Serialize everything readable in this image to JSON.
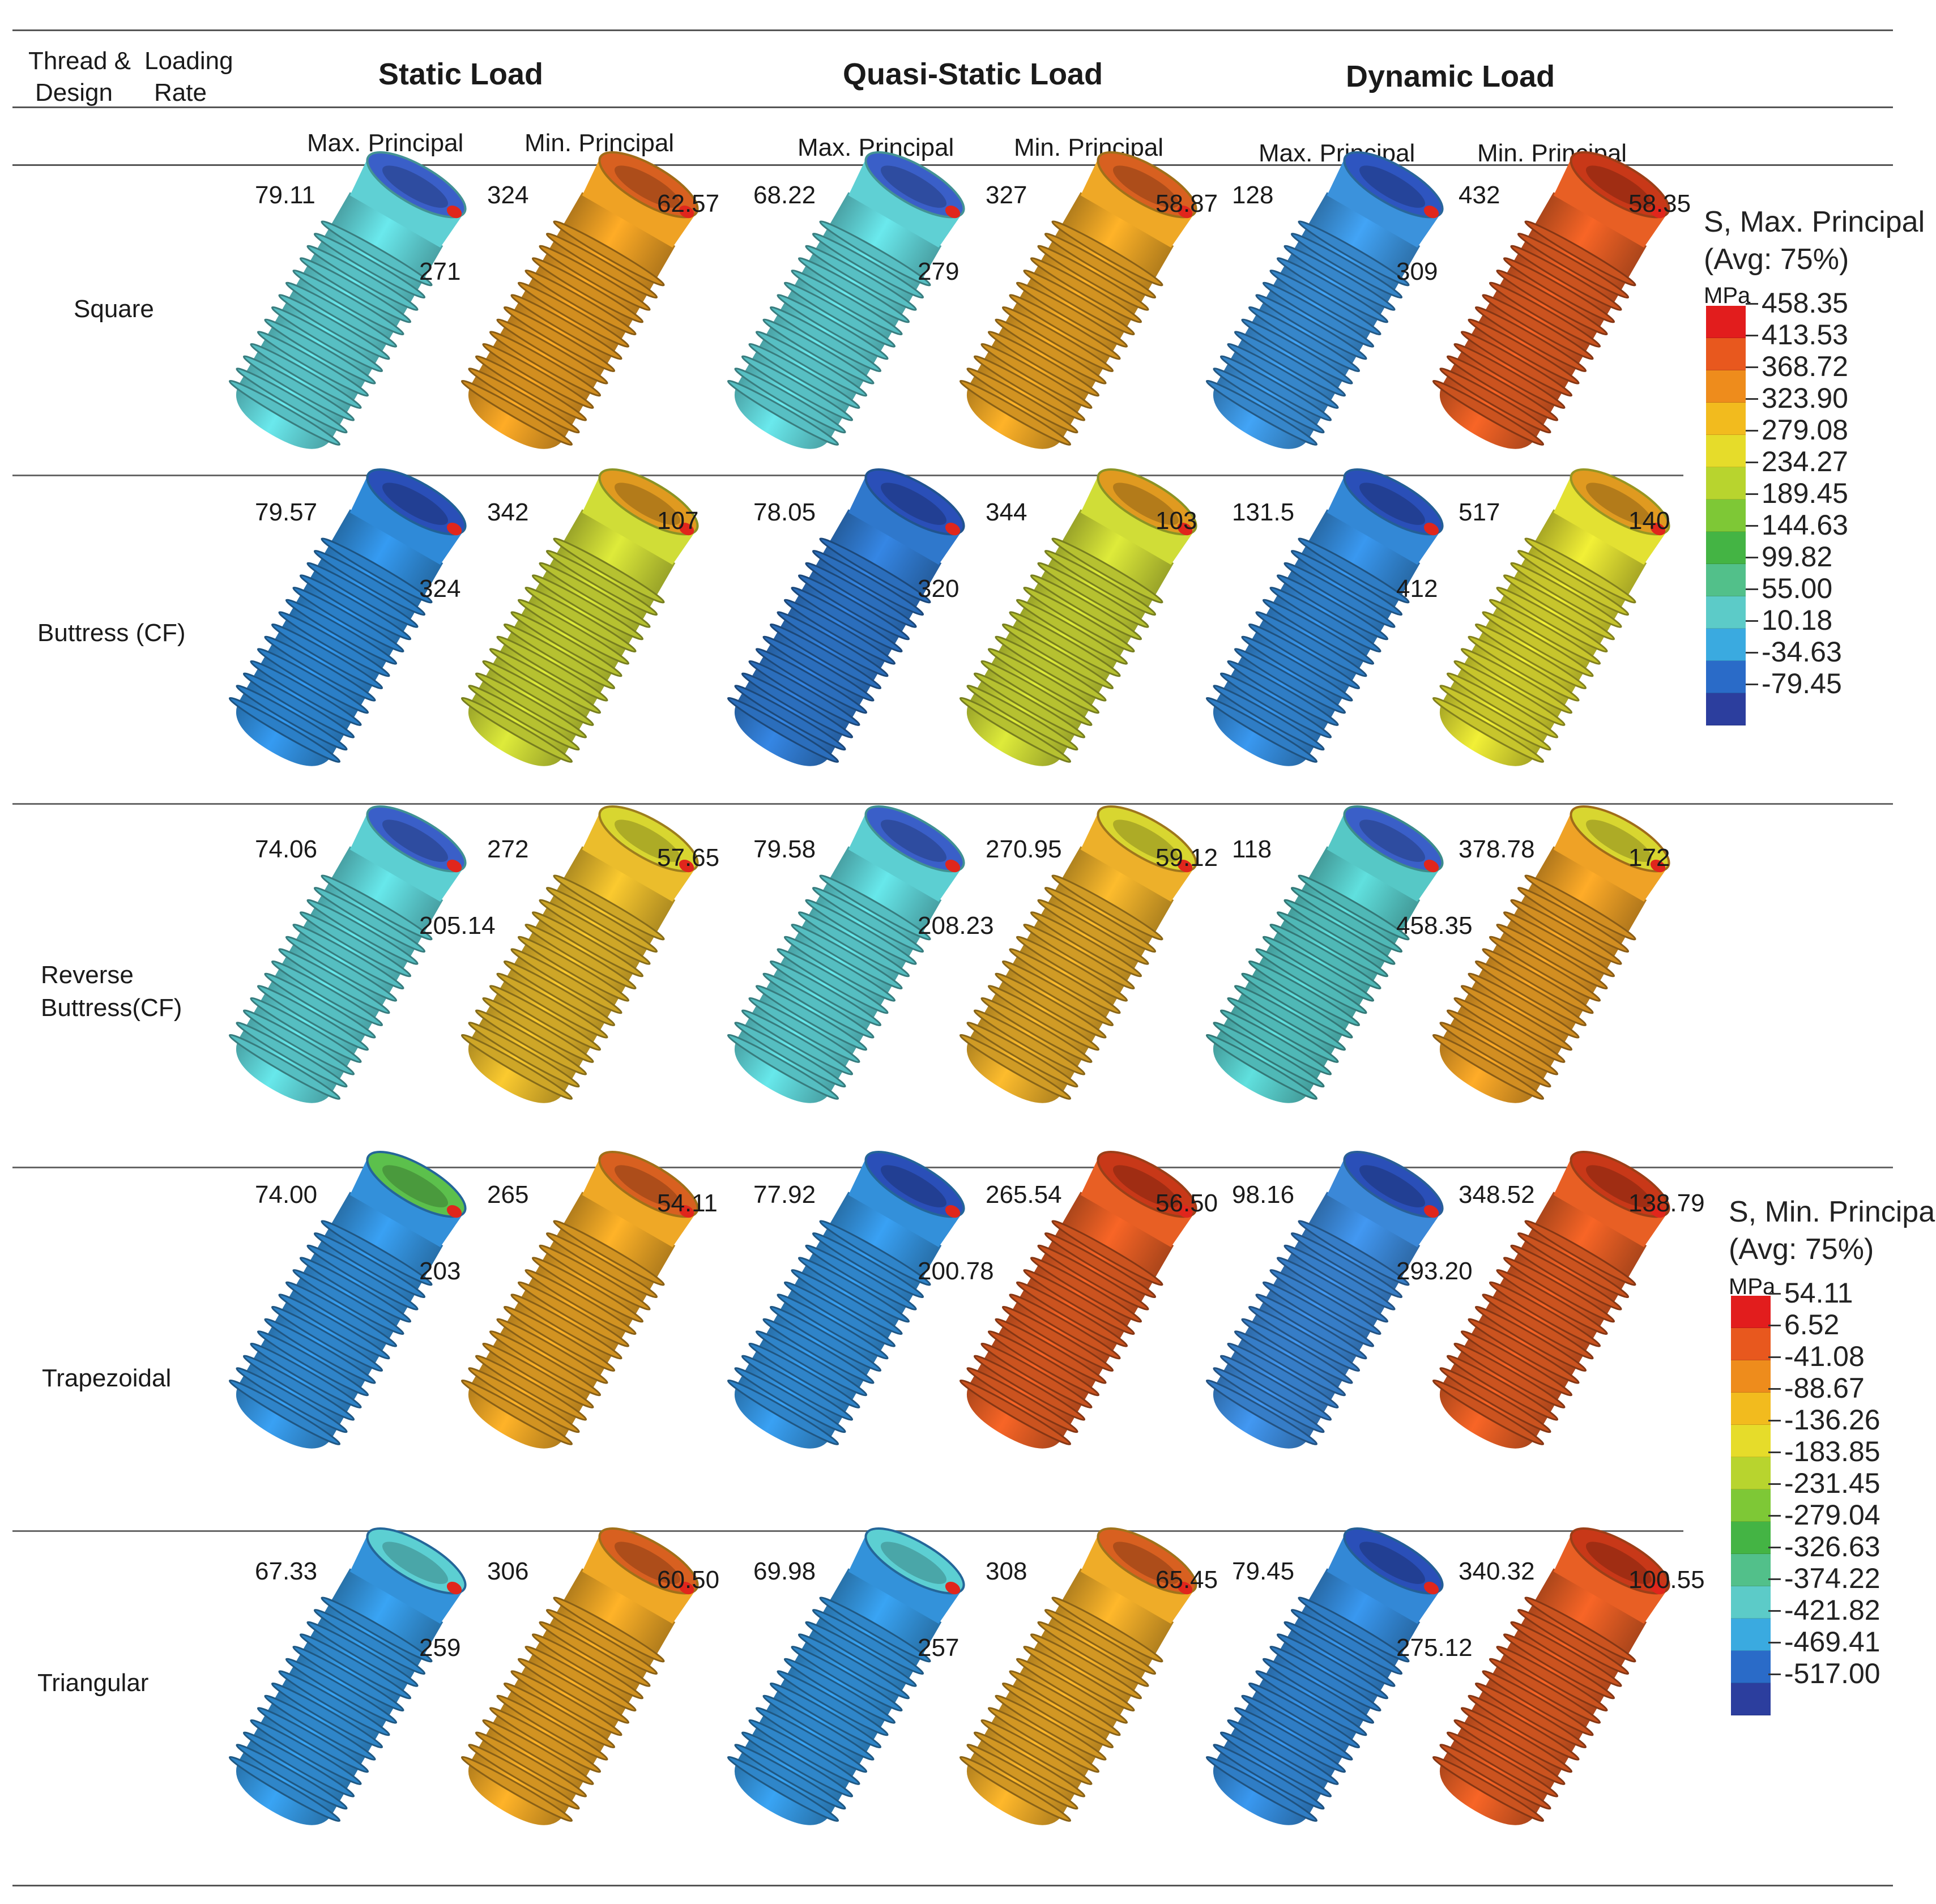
{
  "header": {
    "thread_design_label": "Thread & Design",
    "thread_label": "Thread &",
    "design_label": "Design",
    "loading_label": "Loading",
    "rate_label": "Rate",
    "columns": [
      {
        "title": "Static Load",
        "sub": [
          "Max. Principal",
          "Min. Principal"
        ]
      },
      {
        "title": "Quasi-Static Load",
        "sub": [
          "Max. Principal",
          "Min. Principal"
        ]
      },
      {
        "title": "Dynamic Load",
        "sub": [
          "Max. Principal",
          "Min. Principal"
        ]
      }
    ]
  },
  "rows": [
    {
      "name": "Square",
      "name_lines": [
        "Square"
      ],
      "cells": [
        {
          "a": "79.11",
          "b": "271",
          "style": "max",
          "color": "#5fd0d4",
          "top": "#3a5fc8"
        },
        {
          "a": "324",
          "b": "62.57",
          "style": "min",
          "color": "#e49a22",
          "top": "#d86020"
        },
        {
          "a": "68.22",
          "b": "279",
          "style": "max",
          "color": "#5fd0d4",
          "top": "#3a5fc8"
        },
        {
          "a": "327",
          "b": "58.87",
          "style": "min",
          "color": "#e4a024",
          "top": "#d86020"
        },
        {
          "a": "128",
          "b": "309",
          "style": "max",
          "color": "#3b92dc",
          "top": "#2e55c0"
        },
        {
          "a": "432",
          "b": "58.35",
          "style": "min",
          "color": "#dd5a22",
          "top": "#c83818"
        }
      ]
    },
    {
      "name": "Buttress (CF)",
      "name_lines": [
        "Buttress (CF)"
      ],
      "cells": [
        {
          "a": "79.57",
          "b": "324",
          "style": "max",
          "color": "#2f8ad8",
          "top": "#2a4fb8"
        },
        {
          "a": "342",
          "b": "107",
          "style": "min",
          "color": "#c6d234",
          "top": "#e09a20"
        },
        {
          "a": "78.05",
          "b": "320",
          "style": "max",
          "color": "#2f78cc",
          "top": "#2a4fb8"
        },
        {
          "a": "344",
          "b": "103",
          "style": "min",
          "color": "#c6d234",
          "top": "#e09a20"
        },
        {
          "a": "131.5",
          "b": "412",
          "style": "max",
          "color": "#3388d6",
          "top": "#2a4fb8"
        },
        {
          "a": "517",
          "b": "140",
          "style": "min",
          "color": "#d8d630",
          "top": "#e09a20"
        }
      ]
    },
    {
      "name": "Reverse Buttress(CF)",
      "name_lines": [
        "Reverse",
        "Buttress(CF)"
      ],
      "cells": [
        {
          "a": "74.06",
          "b": "205.14",
          "style": "max",
          "color": "#5ccfd2",
          "top": "#3a5fc8"
        },
        {
          "a": "272",
          "b": "57.65",
          "style": "min",
          "color": "#e0b42a",
          "top": "#d8d630"
        },
        {
          "a": "79.58",
          "b": "208.23",
          "style": "max",
          "color": "#5ccfd2",
          "top": "#3a5fc8"
        },
        {
          "a": "270.95",
          "b": "59.12",
          "style": "min",
          "color": "#e2a828",
          "top": "#d8d630"
        },
        {
          "a": "118",
          "b": "458.35",
          "style": "max",
          "color": "#56c8c6",
          "top": "#3a5fc8"
        },
        {
          "a": "378.78",
          "b": "172",
          "style": "min",
          "color": "#e49a24",
          "top": "#d8d630"
        }
      ]
    },
    {
      "name": "Trapezoidal",
      "name_lines": [
        "Trapezoidal"
      ],
      "cells": [
        {
          "a": "74.00",
          "b": "203",
          "style": "max",
          "color": "#3390da",
          "top": "#5cc04c"
        },
        {
          "a": "265",
          "b": "54.11",
          "style": "min",
          "color": "#e4a024",
          "top": "#d86020"
        },
        {
          "a": "77.92",
          "b": "200.78",
          "style": "max",
          "color": "#3390da",
          "top": "#2a4fb8"
        },
        {
          "a": "265.54",
          "b": "56.50",
          "style": "min",
          "color": "#dd5a22",
          "top": "#c83818"
        },
        {
          "a": "98.16",
          "b": "293.20",
          "style": "max",
          "color": "#3b88d8",
          "top": "#2a4fb8"
        },
        {
          "a": "348.52",
          "b": "138.79",
          "style": "min",
          "color": "#dd5a22",
          "top": "#c83818"
        }
      ]
    },
    {
      "name": "Triangular",
      "name_lines": [
        "Triangular"
      ],
      "cells": [
        {
          "a": "67.33",
          "b": "259",
          "style": "max",
          "color": "#3392da",
          "top": "#5ccfd2"
        },
        {
          "a": "306",
          "b": "60.50",
          "style": "min",
          "color": "#e4a024",
          "top": "#d86020"
        },
        {
          "a": "69.98",
          "b": "257",
          "style": "max",
          "color": "#3392da",
          "top": "#5ccfd2"
        },
        {
          "a": "308",
          "b": "65.45",
          "style": "min",
          "color": "#e4a426",
          "top": "#d86020"
        },
        {
          "a": "79.45",
          "b": "275.12",
          "style": "max",
          "color": "#3388d6",
          "top": "#2a4fb8"
        },
        {
          "a": "340.32",
          "b": "100.55",
          "style": "min",
          "color": "#dd5a22",
          "top": "#c83818"
        }
      ]
    }
  ],
  "legends": [
    {
      "title_lines": [
        "S, Max. Principal",
        "(Avg: 75%)"
      ],
      "unit": "MPa",
      "ticks": [
        "458.35",
        "413.53",
        "368.72",
        "323.90",
        "279.08",
        "234.27",
        "189.45",
        "144.63",
        "99.82",
        "55.00",
        "10.18",
        "-34.63",
        "-79.45"
      ]
    },
    {
      "title_lines": [
        "S, Min. Principal",
        "(Avg: 75%)"
      ],
      "unit": "MPa",
      "ticks": [
        "54.11",
        "6.52",
        "-41.08",
        "-88.67",
        "-136.26",
        "-183.85",
        "-231.45",
        "-279.04",
        "-326.63",
        "-374.22",
        "-421.82",
        "-469.41",
        "-517.00"
      ]
    }
  ],
  "legend_colors": [
    "#e21d1d",
    "#e8581e",
    "#ee8c1c",
    "#f2bb1e",
    "#e6dc2a",
    "#b8d42e",
    "#7ec836",
    "#44b444",
    "#52c08a",
    "#5ccbc8",
    "#3aaae0",
    "#2a6bc8",
    "#2c3e9e"
  ]
}
